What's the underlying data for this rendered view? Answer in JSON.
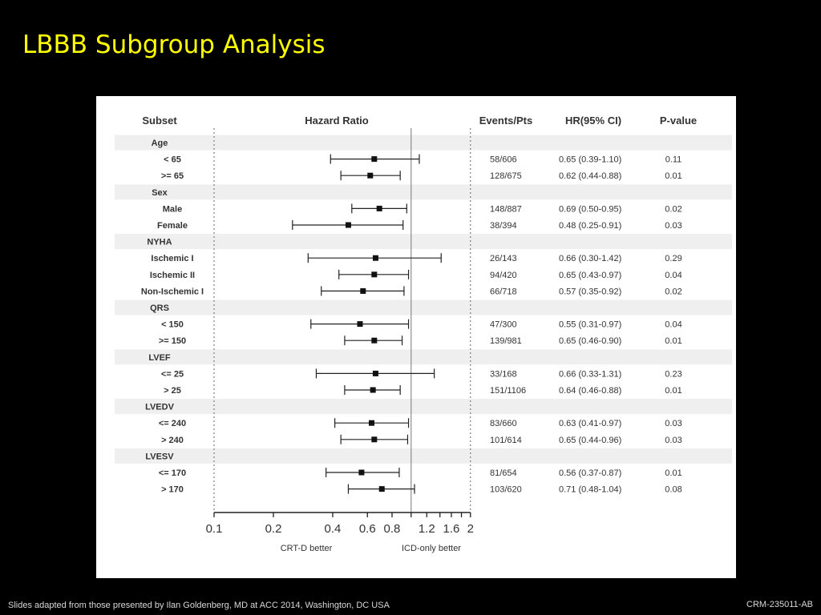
{
  "slide": {
    "title": "LBBB Subgroup Analysis",
    "footer_left": "Slides adapted from those presented by Ilan Goldenberg, MD at  ACC 2014, Washington, DC USA",
    "footer_right": "CRM-235011-AB",
    "title_color": "#ffff00"
  },
  "chart_data": {
    "type": "forest",
    "column_headers": {
      "subset": "Subset",
      "plot": "Hazard Ratio",
      "events": "Events/Pts",
      "hr": "HR(95% CI)",
      "p": "P-value"
    },
    "x_scale": "log",
    "xlim": [
      0.1,
      2
    ],
    "x_ticks": [
      0.1,
      0.2,
      0.4,
      0.6,
      0.8,
      1,
      1.2,
      1.4,
      1.6,
      1.8,
      2
    ],
    "x_tick_labels": [
      "0.1",
      "0.2",
      "0.4",
      "0.6",
      "0.8",
      "1.2",
      "1.6",
      "2"
    ],
    "x_tick_label_values": [
      0.1,
      0.2,
      0.4,
      0.6,
      0.8,
      1.2,
      1.6,
      2
    ],
    "reference_line": 1,
    "left_annotation": "CRT-D better",
    "right_annotation": "ICD-only better",
    "group_band_color": "#efefef",
    "rows": [
      {
        "group": "Age"
      },
      {
        "label": "< 65",
        "events": "58/606",
        "hr_text": "0.65 (0.39-1.10)",
        "p": "0.11",
        "hr": 0.65,
        "lo": 0.39,
        "hi": 1.1
      },
      {
        "label": ">= 65",
        "events": "128/675",
        "hr_text": "0.62 (0.44-0.88)",
        "p": "0.01",
        "hr": 0.62,
        "lo": 0.44,
        "hi": 0.88
      },
      {
        "group": "Sex"
      },
      {
        "label": "Male",
        "events": "148/887",
        "hr_text": "0.69 (0.50-0.95)",
        "p": "0.02",
        "hr": 0.69,
        "lo": 0.5,
        "hi": 0.95
      },
      {
        "label": "Female",
        "events": "38/394",
        "hr_text": "0.48 (0.25-0.91)",
        "p": "0.03",
        "hr": 0.48,
        "lo": 0.25,
        "hi": 0.91
      },
      {
        "group": "NYHA"
      },
      {
        "label": "Ischemic I",
        "events": "26/143",
        "hr_text": "0.66 (0.30-1.42)",
        "p": "0.29",
        "hr": 0.66,
        "lo": 0.3,
        "hi": 1.42
      },
      {
        "label": "Ischemic II",
        "events": "94/420",
        "hr_text": "0.65 (0.43-0.97)",
        "p": "0.04",
        "hr": 0.65,
        "lo": 0.43,
        "hi": 0.97
      },
      {
        "label": "Non-Ischemic I",
        "events": "66/718",
        "hr_text": "0.57 (0.35-0.92)",
        "p": "0.02",
        "hr": 0.57,
        "lo": 0.35,
        "hi": 0.92
      },
      {
        "group": "QRS"
      },
      {
        "label": "< 150",
        "events": "47/300",
        "hr_text": "0.55 (0.31-0.97)",
        "p": "0.04",
        "hr": 0.55,
        "lo": 0.31,
        "hi": 0.97
      },
      {
        "label": ">= 150",
        "events": "139/981",
        "hr_text": "0.65 (0.46-0.90)",
        "p": "0.01",
        "hr": 0.65,
        "lo": 0.46,
        "hi": 0.9
      },
      {
        "group": "LVEF"
      },
      {
        "label": "<= 25",
        "events": "33/168",
        "hr_text": "0.66 (0.33-1.31)",
        "p": "0.23",
        "hr": 0.66,
        "lo": 0.33,
        "hi": 1.31
      },
      {
        "label": "> 25",
        "events": "151/1106",
        "hr_text": "0.64 (0.46-0.88)",
        "p": "0.01",
        "hr": 0.64,
        "lo": 0.46,
        "hi": 0.88
      },
      {
        "group": "LVEDV"
      },
      {
        "label": "<= 240",
        "events": "83/660",
        "hr_text": "0.63 (0.41-0.97)",
        "p": "0.03",
        "hr": 0.63,
        "lo": 0.41,
        "hi": 0.97
      },
      {
        "label": "> 240",
        "events": "101/614",
        "hr_text": "0.65 (0.44-0.96)",
        "p": "0.03",
        "hr": 0.65,
        "lo": 0.44,
        "hi": 0.96
      },
      {
        "group": "LVESV"
      },
      {
        "label": "<= 170",
        "events": "81/654",
        "hr_text": "0.56 (0.37-0.87)",
        "p": "0.01",
        "hr": 0.56,
        "lo": 0.37,
        "hi": 0.87
      },
      {
        "label": "> 170",
        "events": "103/620",
        "hr_text": "0.71 (0.48-1.04)",
        "p": "0.08",
        "hr": 0.71,
        "lo": 0.48,
        "hi": 1.04
      }
    ]
  }
}
